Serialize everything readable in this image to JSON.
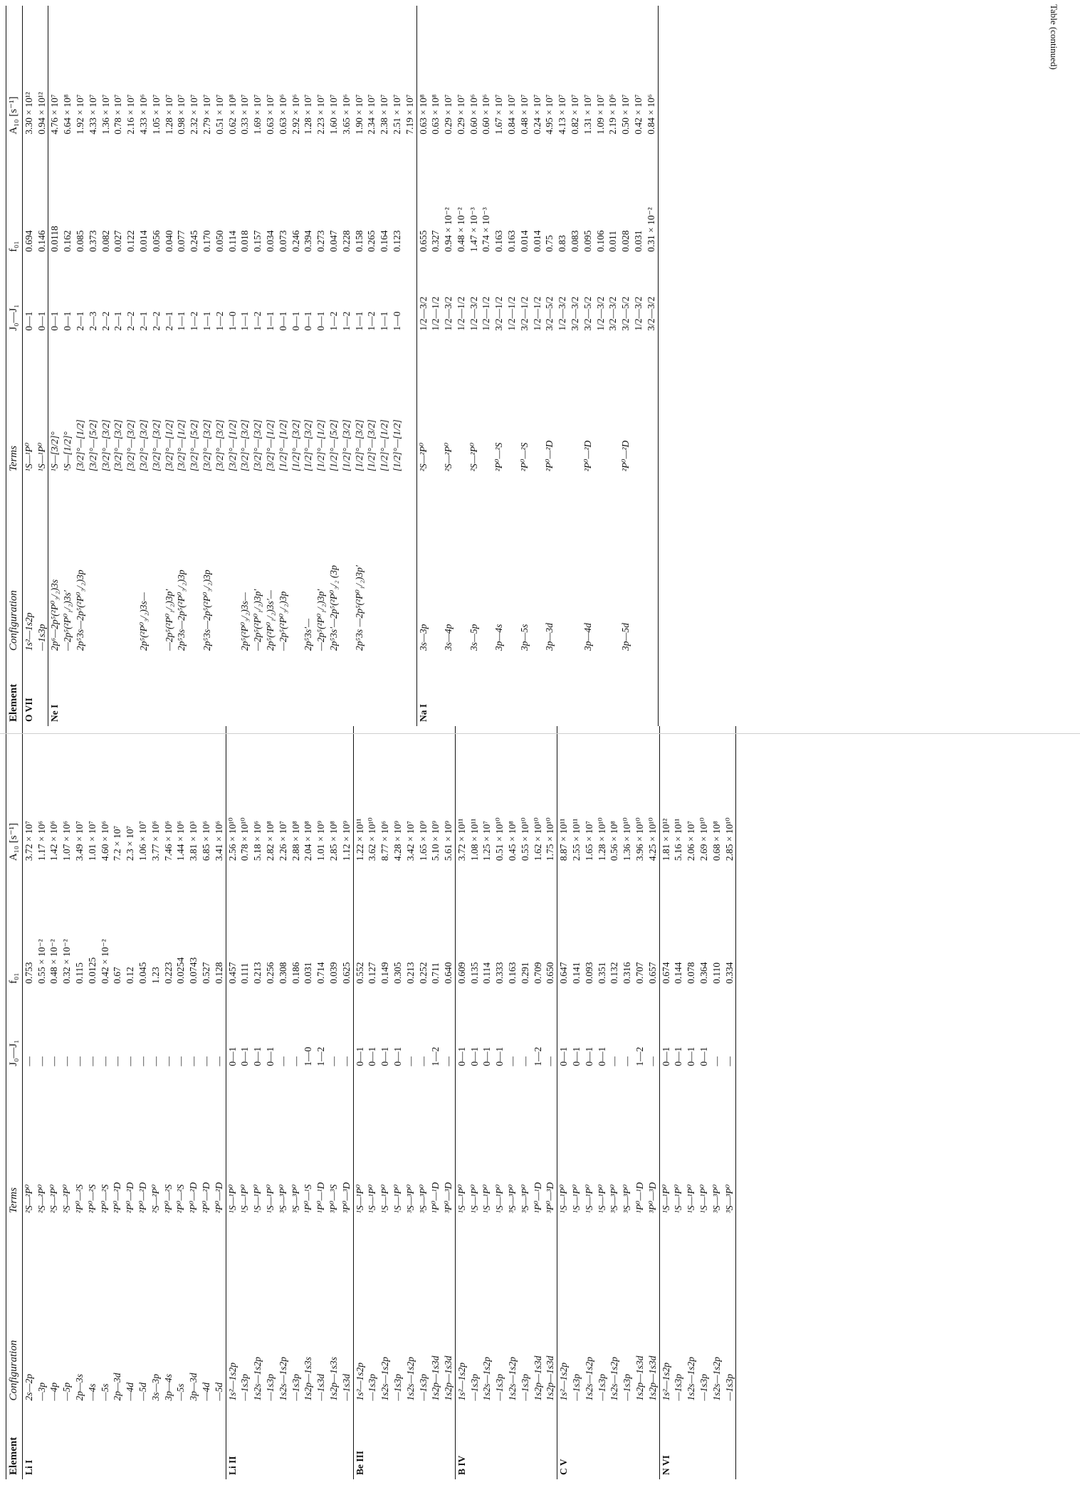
{
  "headers": {
    "element": "Element",
    "configuration": "Configuration",
    "terms": "Terms",
    "j": "J₀—J₁",
    "f": "f₀₁",
    "a": "A₁₀ [s⁻¹]"
  },
  "caption": "Table (continued)",
  "left_groups": [
    {
      "element": "Li I",
      "rows": [
        [
          "2s—2p",
          "²S—²P⁰",
          "—",
          "0.753",
          "3.72 × 10⁷"
        ],
        [
          "—3p",
          "²S—²P⁰",
          "—",
          "0.55 × 10⁻²",
          "1.17 × 10⁶"
        ],
        [
          "—4p",
          "²S—²P⁰",
          "—",
          "0.48 × 10⁻²",
          "1.42 × 10⁶"
        ],
        [
          "—5p",
          "²S—²P⁰",
          "—",
          "0.32 × 10⁻²",
          "1.07 × 10⁶"
        ],
        [
          "2p—3s",
          "²P⁰—²S",
          "—",
          "0.115",
          "3.49 × 10⁷"
        ],
        [
          "—4s",
          "²P⁰—²S",
          "—",
          "0.0125",
          "1.01 × 10⁷"
        ],
        [
          "—5s",
          "²P⁰—²S",
          "—",
          "0.42 × 10⁻²",
          "4.60 × 10⁶"
        ],
        [
          "2p—3d",
          "²P⁰—²D",
          "—",
          "0.67",
          "7.2 × 10⁷"
        ],
        [
          "—4d",
          "²P⁰—²D",
          "—",
          "0.12",
          "2.3 × 10⁷"
        ],
        [
          "—5d",
          "²P⁰—²D",
          "—",
          "0.045",
          "1.06 × 10⁷"
        ],
        [
          "3s—3p",
          "²S—²P⁰",
          "—",
          "1.23",
          "3.77 × 10⁶"
        ],
        [
          "3p—4s",
          "²P⁰—²S",
          "—",
          "0.223",
          "7.46 × 10⁶"
        ],
        [
          "—5s",
          "²P⁰—²S",
          "—",
          "0.0254",
          "1.44 × 10⁶"
        ],
        [
          "3p—3d",
          "²P⁰—²D",
          "—",
          "0.0743",
          "3.81 × 10³"
        ],
        [
          "—4d",
          "²P⁰—²D",
          "—",
          "0.527",
          "6.85 × 10⁶"
        ],
        [
          "—5d",
          "²P⁰—²D",
          "—",
          "0.128",
          "3.41 × 10⁶"
        ]
      ]
    },
    {
      "element": "Li II",
      "rows": [
        [
          "1s²—1s2p",
          "¹S—¹P⁰",
          "0—1",
          "0.457",
          "2.56 × 10¹⁰"
        ],
        [
          "—1s3p",
          "¹S—¹P⁰",
          "0—1",
          "0.111",
          "0.78 × 10¹⁰"
        ],
        [
          "1s2s—1s2p",
          "¹S—¹P⁰",
          "0—1",
          "0.213",
          "5.18 × 10⁶"
        ],
        [
          "—1s3p",
          "¹S—¹P⁰",
          "0—1",
          "0.256",
          "2.82 × 10⁸"
        ],
        [
          "1s2s—1s2p",
          "³S—³P⁰",
          "—",
          "0.308",
          "2.26 × 10⁷"
        ],
        [
          "—1s3p",
          "³S—³P⁰",
          "—",
          "0.186",
          "2.88 × 10⁸"
        ],
        [
          "1s2p—1s3s",
          "¹P⁰—¹S",
          "1—0",
          "0.031",
          "2.04 × 10⁸"
        ],
        [
          "—1s3d",
          "¹P⁰—¹D",
          "1—2",
          "0.714",
          "1.01 × 10⁹"
        ],
        [
          "1s2p—1s3s",
          "³P⁰—³S",
          "—",
          "0.039",
          "2.85 × 10⁸"
        ],
        [
          "—1s3d",
          "³P⁰—³D",
          "—",
          "0.625",
          "1.12 × 10⁹"
        ]
      ]
    },
    {
      "element": "Be III",
      "rows": [
        [
          "1s²—1s2p",
          "¹S—¹P⁰",
          "0—1",
          "0.552",
          "1.22 × 10¹¹"
        ],
        [
          "—1s3p",
          "¹S—¹P⁰",
          "0—1",
          "0.127",
          "3.62 × 10¹⁰"
        ],
        [
          "1s2s—1s2p",
          "¹S—¹P⁰",
          "0—1",
          "0.149",
          "8.77 × 10⁶"
        ],
        [
          "—1s3p",
          "¹S—¹P⁰",
          "0—1",
          "0.305",
          "4.28 × 10⁹"
        ],
        [
          "1s2s—1s2p",
          "³S—³P⁰",
          "—",
          "0.213",
          "3.42 × 10⁷"
        ],
        [
          "—1s3p",
          "³S—³P⁰",
          "—",
          "0.252",
          "1.65 × 10⁹"
        ],
        [
          "1s2p—1s3d",
          "¹P⁰—¹D",
          "1—2",
          "0.711",
          "5.10 × 10⁹"
        ],
        [
          "1s2p—1s3d",
          "³P⁰—³D",
          "—",
          "0.640",
          "5.61 × 10⁹"
        ]
      ]
    },
    {
      "element": "B IV",
      "rows": [
        [
          "1s²—1s2p",
          "¹S—¹P⁰",
          "0—1",
          "0.609",
          "3.72 × 10¹¹"
        ],
        [
          "—1s3p",
          "¹S—¹P⁰",
          "0—1",
          "0.135",
          "1.08 × 10¹¹"
        ],
        [
          "1s2s—1s2p",
          "¹S—¹P⁰",
          "0—1",
          "0.114",
          "1.25 × 10⁷"
        ],
        [
          "—1s3p",
          "¹S—¹P⁰",
          "0—1",
          "0.333",
          "0.51 × 10¹⁰"
        ],
        [
          "1s2s—1s2p",
          "³S—³P⁰",
          "—",
          "0.163",
          "0.45 × 10⁸"
        ],
        [
          "—1s3p",
          "³S—³P⁰",
          "—",
          "0.291",
          "0.55 × 10¹⁰"
        ],
        [
          "1s2p—1s3d",
          "¹P⁰—¹D",
          "1—2",
          "0.709",
          "1.62 × 10¹⁰"
        ],
        [
          "1s2p—1s3d",
          "³P⁰—³D",
          "—",
          "0.650",
          "1.75 × 10¹⁰"
        ]
      ]
    },
    {
      "element": "C V",
      "rows": [
        [
          "1s²—1s2p",
          "¹S—¹P⁰",
          "0—1",
          "0.647",
          "8.87 × 10¹¹"
        ],
        [
          "—1s3p",
          "¹S—¹P⁰",
          "0—1",
          "0.141",
          "2.55 × 10¹¹"
        ],
        [
          "1s2s—1s2p",
          "¹S—¹P⁰",
          "0—1",
          "0.093",
          "1.65 × 10⁷"
        ],
        [
          "—1s3p",
          "¹S—¹P⁰",
          "0—1",
          "0.351",
          "1.28 × 10¹⁰"
        ],
        [
          "1s2s—1s2p",
          "³S—³P⁰",
          "—",
          "0.132",
          "0.56 × 10⁸"
        ],
        [
          "—1s3p",
          "³S—³P⁰",
          "—",
          "0.316",
          "1.36 × 10¹⁰"
        ],
        [
          "1s2p—1s3d",
          "¹P⁰—¹D",
          "1—2",
          "0.707",
          "3.96 × 10¹⁰"
        ],
        [
          "1s2p—1s3d",
          "³P⁰—³D",
          "—",
          "0.657",
          "4.25 × 10¹⁰"
        ]
      ]
    },
    {
      "element": "N VI",
      "rows": [
        [
          "1s²—1s2p",
          "¹S—¹P⁰",
          "0—1",
          "0.674",
          "1.81 × 10¹²"
        ],
        [
          "—1s3p",
          "¹S—¹P⁰",
          "0—1",
          "0.144",
          "5.16 × 10¹¹"
        ],
        [
          "1s2s—1s2p",
          "¹S—¹P⁰",
          "0—1",
          "0.078",
          "2.06 × 10⁷"
        ],
        [
          "—1s3p",
          "¹S—¹P⁰",
          "0—1",
          "0.364",
          "2.69 × 10¹⁰"
        ],
        [
          "1s2s—1s2p",
          "³S—³P⁰",
          "—",
          "0.110",
          "0.68 × 10⁸"
        ],
        [
          "—1s3p",
          "³S—³P⁰",
          "—",
          "0.334",
          "2.85 × 10¹⁰"
        ]
      ]
    }
  ],
  "right_groups": [
    {
      "element": "O VII",
      "rows": [
        [
          "1s²—1s2p",
          "¹S—¹P⁰",
          "0—1",
          "0.694",
          "3.30 × 10¹²"
        ],
        [
          "—1s3p",
          "¹S—¹P⁰",
          "0—1",
          "0.146",
          "0.94 × 10¹²"
        ]
      ]
    },
    {
      "element": "Ne I",
      "rows": [
        [
          "2p⁶—2p⁵(²P⁰₃/₂)3s",
          "¹S—[3/2]°",
          "0—1",
          "0.0118",
          "4.76 × 10⁷"
        ],
        [
          "—2p⁵(²P⁰₁/₂)3s′",
          "¹S—[1/2]°",
          "0—1",
          "0.162",
          "6.64 × 10⁸"
        ],
        [
          "2p⁵3s—2p⁵(²P⁰₃/₂)3p",
          "[3/2]°—[1/2]",
          "2—1",
          "0.085",
          "1.92 × 10⁷"
        ],
        [
          "",
          "[3/2]°—[5/2]",
          "2—3",
          "0.373",
          "4.33 × 10⁷"
        ],
        [
          "",
          "[3/2]°—[3/2]",
          "2—2",
          "0.082",
          "1.36 × 10⁷"
        ],
        [
          "",
          "[3/2]°—[3/2]",
          "2—1",
          "0.027",
          "0.78 × 10⁷"
        ],
        [
          "",
          "[3/2]°—[3/2]",
          "2—2",
          "0.122",
          "2.16 × 10⁷"
        ],
        [
          "2p⁵(²P⁰₃/₂)3s—",
          "[3/2]°—[3/2]",
          "2—1",
          "0.014",
          "4.33 × 10⁶"
        ],
        [
          "",
          "[3/2]°—[3/2]",
          "2—2",
          "0.056",
          "1.05 × 10⁷"
        ],
        [
          "—2p⁵(²P⁰₁/₂)3p′",
          "[3/2]°—[1/2]",
          "2—1",
          "0.040",
          "1.28 × 10⁷"
        ],
        [
          "2p⁵3s—2p⁵(²P⁰₃/₂)3p",
          "[3/2]°—[1/2]",
          "1—1",
          "0.077",
          "0.98 × 10⁷"
        ],
        [
          "",
          "[3/2]°—[5/2]",
          "1—2",
          "0.245",
          "2.32 × 10⁷"
        ],
        [
          "2p⁵3s—2p⁵(²P⁰₃/₂)3p",
          "[3/2]°—[3/2]",
          "1—1",
          "0.170",
          "2.79 × 10⁷"
        ],
        [
          "",
          "[3/2]°—[3/2]",
          "1—2",
          "0.050",
          "0.51 × 10⁷"
        ],
        [
          "",
          "[3/2]°—[1/2]",
          "1—0",
          "0.114",
          "0.62 × 10⁸"
        ],
        [
          "2p⁵(²P⁰₃/₂)3s—",
          "[3/2]°—[3/2]",
          "1—1",
          "0.018",
          "0.33 × 10⁷"
        ],
        [
          "—2p⁵(²P⁰₁/₂)3p′",
          "[3/2]°—[3/2]",
          "1—2",
          "0.157",
          "1.69 × 10⁷"
        ],
        [
          "2p⁵(²P⁰₁/₂)3s′—",
          "[3/2]°—[1/2]",
          "1—1",
          "0.034",
          "0.63 × 10⁷"
        ],
        [
          "—2p⁵(²P⁰₃/₂)3p",
          "[1/2]°—[1/2]",
          "0—1",
          "0.073",
          "0.63 × 10⁶"
        ],
        [
          "",
          "[1/2]°—[3/2]",
          "0—1",
          "0.246",
          "2.92 × 10⁶"
        ],
        [
          "2p⁵3s′—",
          "[1/2]°—[3/2]",
          "0—1",
          "0.394",
          "1.28 × 10⁷"
        ],
        [
          "—2p⁵(²P⁰₁/₂)3p′",
          "[1/2]°—[1/2]",
          "0—1",
          "0.273",
          "2.23 × 10⁷"
        ],
        [
          "2p⁵3s′—2p⁵(²P⁰₃/₂ (3p",
          "[1/2]°—[5/2]",
          "1—2",
          "0.047",
          "1.60 × 10⁷"
        ],
        [
          "",
          "[1/2]°—[3/2]",
          "1—2",
          "0.228",
          "3.65 × 10⁶"
        ],
        [
          "2p⁵3s —2p⁵(²P⁰₁/₂)3p′",
          "[1/2]°—[3/2]",
          "1—1",
          "0.158",
          "1.90 × 10⁷"
        ],
        [
          "",
          "[1/2]°—[3/2]",
          "1—2",
          "0.265",
          "2.34 × 10⁷"
        ],
        [
          "",
          "[1/2]°—[1/2]",
          "1—1",
          "0.164",
          "2.38 × 10⁷"
        ],
        [
          "",
          "[1/2]°—[1/2]",
          "1—0",
          "0.123",
          "2.51 × 10⁷"
        ],
        [
          "",
          "",
          "",
          "",
          "7.19 × 10⁷"
        ]
      ]
    },
    {
      "element": "Na I",
      "rows": [
        [
          "3s—3p",
          "²S—²P⁰",
          "1/2—3/2",
          "0.655",
          "0.63 × 10⁸"
        ],
        [
          "",
          "",
          "1/2—1/2",
          "0.327",
          "0.63 × 10⁸"
        ],
        [
          "3s—4p",
          "²S—²P⁰",
          "1/2—3/2",
          "0.94 × 10⁻²",
          "0.29 × 10⁷"
        ],
        [
          "",
          "",
          "1/2—1/2",
          "0.48 × 10⁻²",
          "0.29 × 10⁷"
        ],
        [
          "3s—5p",
          "²S—²P⁰",
          "1/2—3/2",
          "1.47 × 10⁻³",
          "0.60 × 10⁶"
        ],
        [
          "",
          "",
          "1/2—1/2",
          "0.74 × 10⁻³",
          "0.60 × 10⁶"
        ],
        [
          "3p—4s",
          "²P⁰—²S",
          "3/2—1/2",
          "0.163",
          "1.67 × 10⁷"
        ],
        [
          "",
          "",
          "1/2—1/2",
          "0.163",
          "0.84 × 10⁷"
        ],
        [
          "3p—5s",
          "²P⁰—²S",
          "3/2—1/2",
          "0.014",
          "0.48 × 10⁷"
        ],
        [
          "",
          "",
          "1/2—1/2",
          "0.014",
          "0.24 × 10⁷"
        ],
        [
          "3p—3d",
          "²P⁰—²D",
          "3/2—5/2",
          "0.75",
          "4.95 × 10⁷"
        ],
        [
          "",
          "",
          "1/2—3/2",
          "0.83",
          "4.13 × 10⁷"
        ],
        [
          "",
          "",
          "3/2—3/2",
          "0.083",
          "0.82 × 10⁷"
        ],
        [
          "3p—4d",
          "²P⁰—²D",
          "3/2—5/2",
          "0.095",
          "1.31 × 10⁷"
        ],
        [
          "",
          "",
          "1/2—3/2",
          "0.106",
          "1.09 × 10⁷"
        ],
        [
          "",
          "",
          "3/2—3/2",
          "0.011",
          "2.19 × 10⁶"
        ],
        [
          "3p—5d",
          "²P⁰—²D",
          "3/2—5/2",
          "0.028",
          "0.50 × 10⁷"
        ],
        [
          "",
          "",
          "1/2—3/2",
          "0.031",
          "0.42 × 10⁷"
        ],
        [
          "",
          "",
          "3/2—3/2",
          "0.31 × 10⁻²",
          "0.84 × 10⁶"
        ]
      ]
    }
  ]
}
